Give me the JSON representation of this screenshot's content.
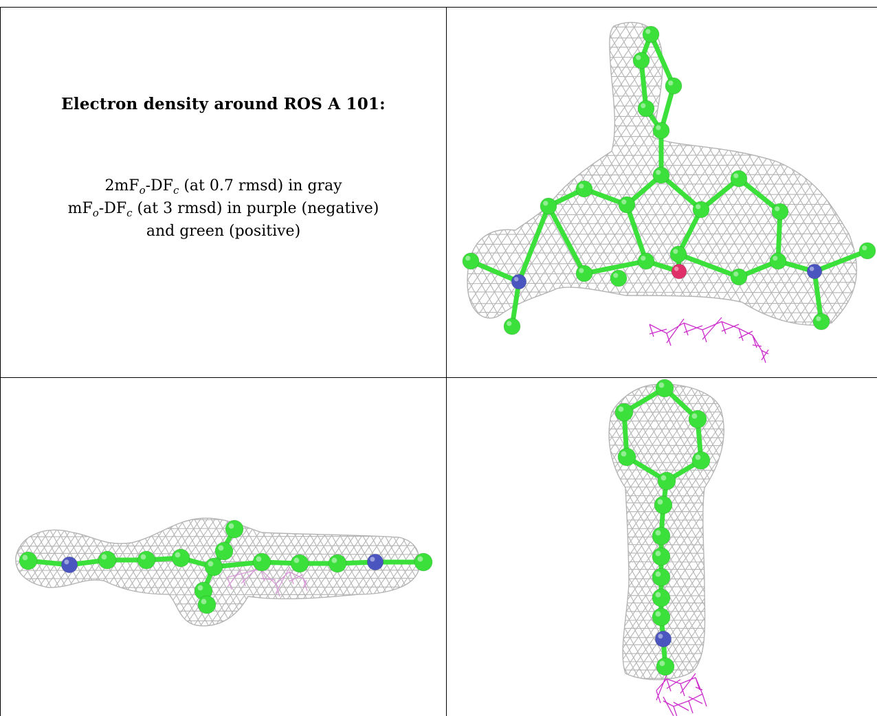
{
  "title": "Electron density around ROS A 101:",
  "legend": {
    "line1_pre": "2mF",
    "line1_sub1": "o",
    "line1_mid": "-DF",
    "line1_sub2": "c",
    "line1_post": " (at 0.7 rmsd) in gray",
    "line2_pre": "mF",
    "line2_sub1": "o",
    "line2_mid": "-DF",
    "line2_sub2": "c",
    "line2_post": " (at 3 rmsd) in purple (negative)",
    "line3": "and green (positive)"
  },
  "colors": {
    "carbon": "#3be03b",
    "nitrogen": "#4a55c0",
    "oxygen": "#e0306a",
    "mesh_gray": "#b4b4b4",
    "mesh_negative": "#cc2ccc",
    "mesh_negative_faint": "#d79ad7"
  }
}
